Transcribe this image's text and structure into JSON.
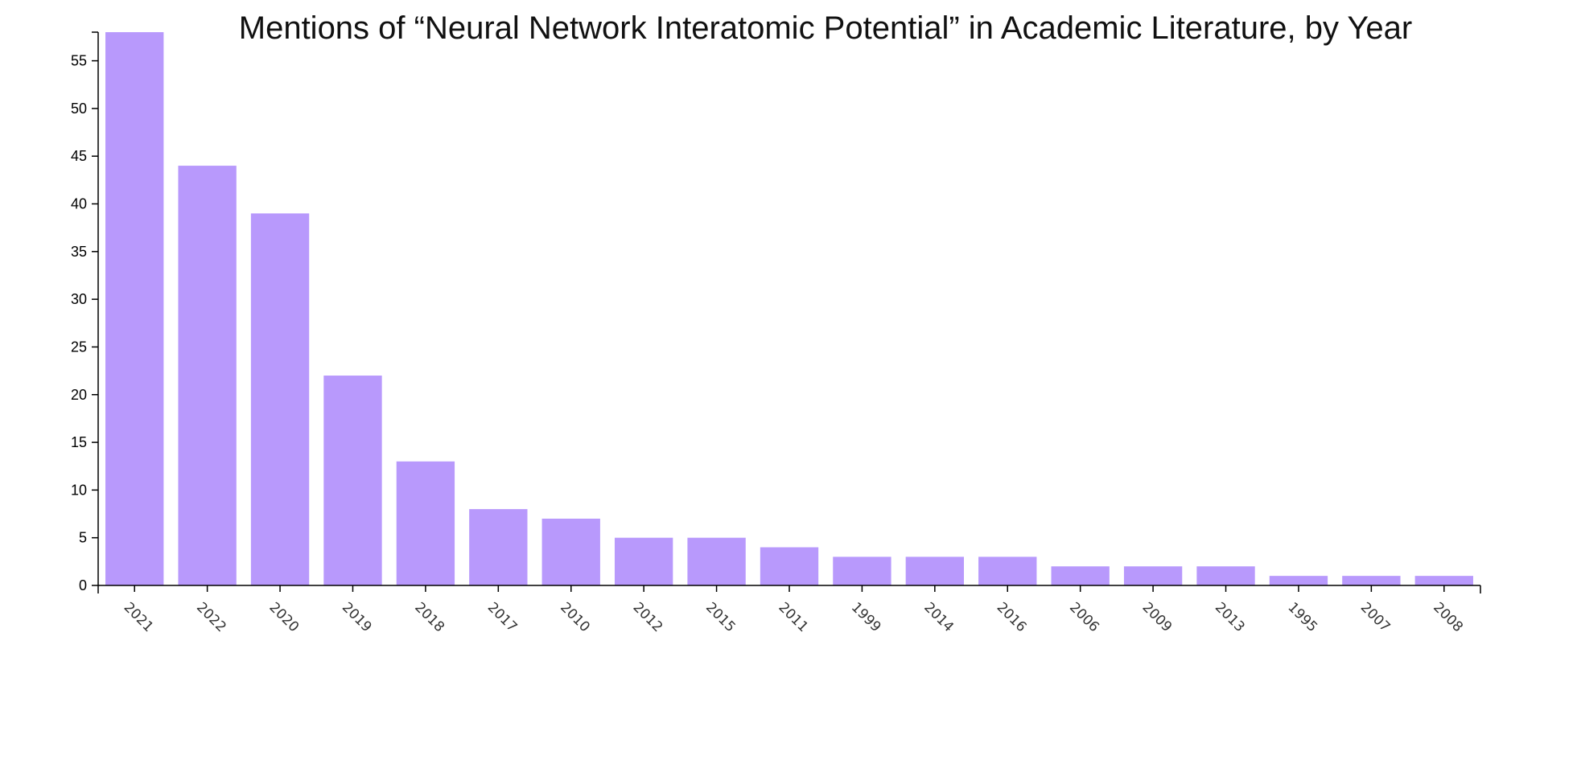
{
  "chart_data": {
    "type": "bar",
    "title": "Mentions of “Neural Network Interatomic Potential” in Academic Literature, by Year",
    "xlabel": "",
    "ylabel": "",
    "categories": [
      "2021",
      "2022",
      "2020",
      "2019",
      "2018",
      "2017",
      "2010",
      "2012",
      "2015",
      "2011",
      "1999",
      "2014",
      "2016",
      "2006",
      "2009",
      "2013",
      "1995",
      "2007",
      "2008"
    ],
    "values": [
      58,
      44,
      39,
      22,
      13,
      8,
      7,
      5,
      5,
      4,
      3,
      3,
      3,
      2,
      2,
      2,
      1,
      1,
      1
    ],
    "ylim": [
      0,
      58
    ],
    "yticks": [
      0,
      5,
      10,
      15,
      20,
      25,
      30,
      35,
      40,
      45,
      50,
      55
    ],
    "grid": false,
    "bar_color": "#b899fc"
  }
}
